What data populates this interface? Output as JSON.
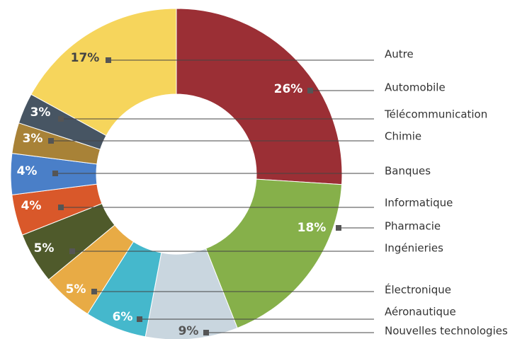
{
  "chart_data": {
    "type": "pie",
    "categories": [
      "Automobile",
      "Pharmacie",
      "Nouvelles technologies",
      "Aéronautique",
      "Électronique",
      "Ingénieries",
      "Informatique",
      "Banques",
      "Chimie",
      "Télécommunication",
      "Autre"
    ],
    "values": [
      26,
      18,
      9,
      6,
      5,
      5,
      4,
      4,
      3,
      3,
      17
    ],
    "value_labels": [
      "26%",
      "18%",
      "9%",
      "6%",
      "5%",
      "5%",
      "4%",
      "4%",
      "3%",
      "3%",
      "17%"
    ],
    "colors": [
      "#9b2f35",
      "#86b04a",
      "#c9d6df",
      "#45b8cc",
      "#e8ab45",
      "#4f5a2b",
      "#d9582a",
      "#4a7fc8",
      "#a88237",
      "#475563",
      "#f6d55c"
    ]
  }
}
